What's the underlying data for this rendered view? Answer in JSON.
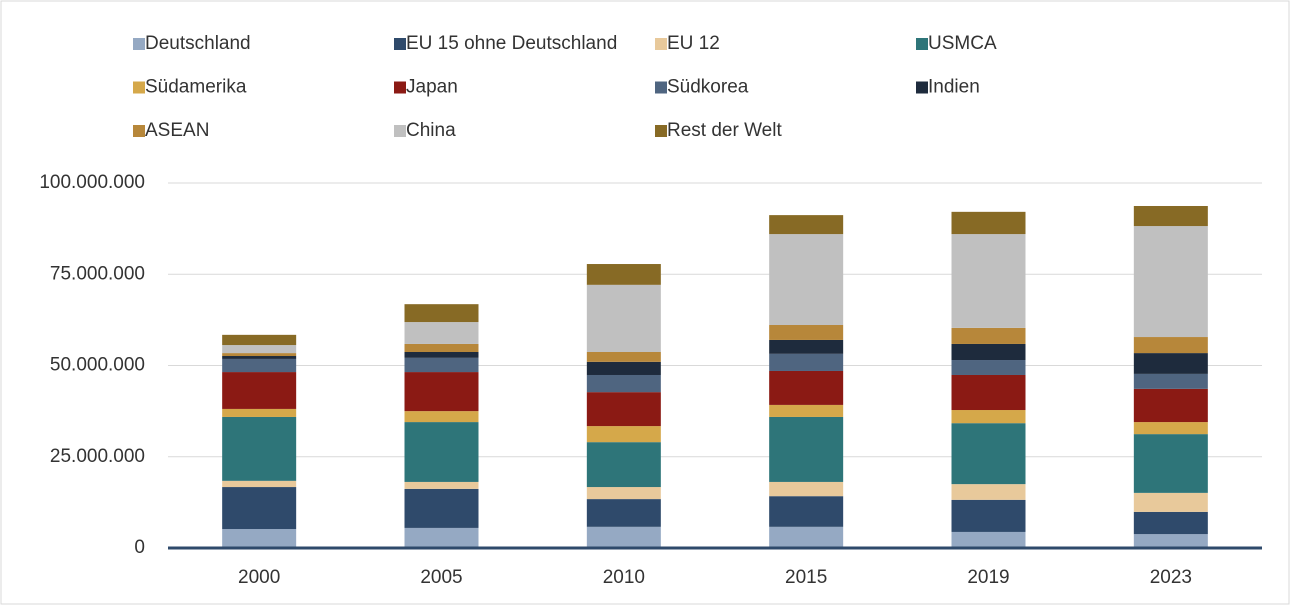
{
  "chart_data": {
    "type": "stacked_bar",
    "categories": [
      "2000",
      "2005",
      "2010",
      "2015",
      "2019",
      "2023"
    ],
    "series": [
      {
        "name": "Deutschland",
        "color": "#95a9c3",
        "values": [
          5200000,
          5500000,
          5800000,
          5800000,
          4400000,
          3800000
        ]
      },
      {
        "name": "EU 15 ohne Deutschland",
        "color": "#2f4a6b",
        "values": [
          11500000,
          10700000,
          7600000,
          8400000,
          8800000,
          6100000
        ]
      },
      {
        "name": "EU 12",
        "color": "#e8c99b",
        "values": [
          1700000,
          1900000,
          3300000,
          3900000,
          4300000,
          5200000
        ]
      },
      {
        "name": "USMCA",
        "color": "#2e7579",
        "values": [
          17500000,
          16400000,
          12300000,
          17800000,
          16700000,
          16100000
        ]
      },
      {
        "name": "Südamerika",
        "color": "#d5a84a",
        "values": [
          2200000,
          3000000,
          4400000,
          3300000,
          3600000,
          3300000
        ]
      },
      {
        "name": "Japan",
        "color": "#8b1a14",
        "values": [
          10100000,
          10700000,
          9300000,
          9300000,
          9600000,
          9100000
        ]
      },
      {
        "name": "Südkorea",
        "color": "#4f6580",
        "values": [
          3600000,
          3900000,
          4700000,
          4700000,
          4100000,
          4100000
        ]
      },
      {
        "name": "Indien",
        "color": "#1e2b3d",
        "values": [
          800000,
          1600000,
          3600000,
          3800000,
          4400000,
          5700000
        ]
      },
      {
        "name": "ASEAN",
        "color": "#b7873a",
        "values": [
          800000,
          2200000,
          2700000,
          4100000,
          4400000,
          4400000
        ]
      },
      {
        "name": "China",
        "color": "#c0c0c0",
        "values": [
          2200000,
          6000000,
          18400000,
          24900000,
          25700000,
          30400000
        ]
      },
      {
        "name": "Rest der Welt",
        "color": "#876a25",
        "values": [
          2800000,
          4900000,
          5700000,
          5200000,
          6100000,
          5500000
        ]
      }
    ],
    "ylim": [
      0,
      100000000
    ],
    "yticks": [
      0,
      {
        "value": 25000000,
        "label": "25.000.000"
      },
      {
        "value": 50000000,
        "label": "50.000.000"
      },
      {
        "value": 75000000,
        "label": "75.000.000"
      },
      {
        "value": 100000000,
        "label": "100.000.000"
      }
    ],
    "grid": true,
    "legend": "top"
  }
}
